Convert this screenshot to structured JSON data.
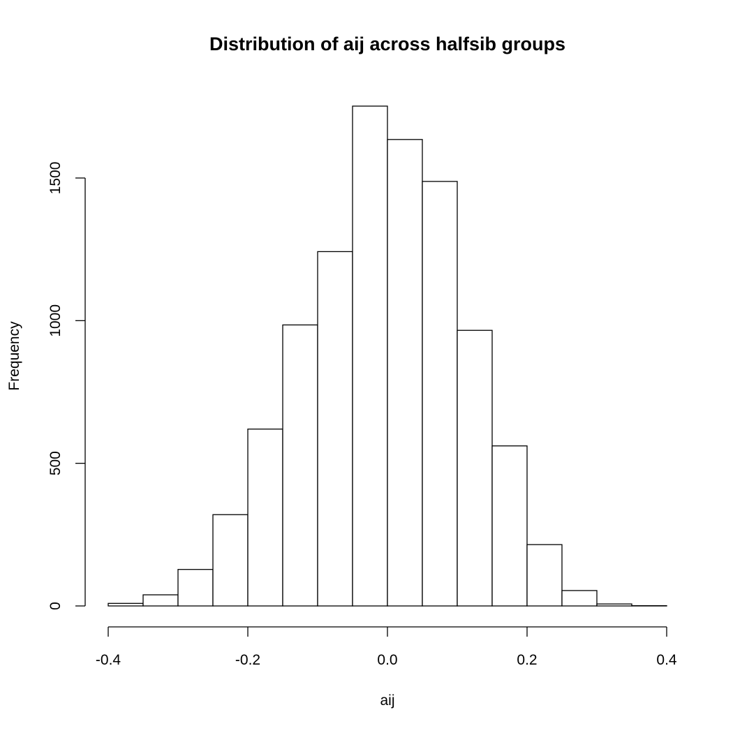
{
  "chart_data": {
    "type": "histogram",
    "title": "Distribution of aij across halfsib groups",
    "xlabel": "aij",
    "ylabel": "Frequency",
    "bin_edges": [
      -0.4,
      -0.35,
      -0.3,
      -0.25,
      -0.2,
      -0.15,
      -0.1,
      -0.05,
      0.0,
      0.05,
      0.1,
      0.15,
      0.2,
      0.25,
      0.3,
      0.35,
      0.4
    ],
    "values": [
      9,
      39,
      128,
      320,
      620,
      985,
      1242,
      1752,
      1635,
      1488,
      966,
      561,
      215,
      54,
      7,
      1
    ],
    "xlim": [
      -0.4,
      0.4
    ],
    "ylim": [
      0,
      1752
    ],
    "x_ticks": [
      -0.4,
      -0.2,
      0.0,
      0.2,
      0.4
    ],
    "x_tick_labels": [
      "-0.4",
      "-0.2",
      "0.0",
      "0.2",
      "0.4"
    ],
    "y_ticks": [
      0,
      500,
      1000,
      1500
    ],
    "y_tick_labels": [
      "0",
      "500",
      "1000",
      "1500"
    ],
    "grid": false,
    "bar_fill": "#ffffff",
    "bar_stroke": "#000000"
  }
}
